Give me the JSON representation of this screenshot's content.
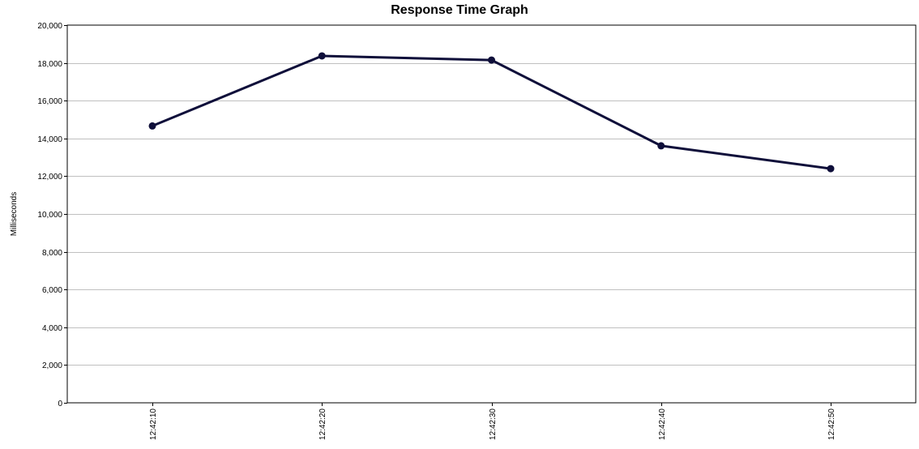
{
  "chart_data": {
    "type": "line",
    "title": "Response Time Graph",
    "xlabel": "",
    "ylabel": "Milliseconds",
    "x": [
      "12:42:10",
      "12:42:20",
      "12:42:30",
      "12:42:40",
      "12:42:50"
    ],
    "series": [
      {
        "values": [
          14660,
          18370,
          18150,
          13610,
          12400
        ],
        "color": "#0f0f3a"
      }
    ],
    "ylim": [
      0,
      20000
    ],
    "yticks": [
      0,
      2000,
      4000,
      6000,
      8000,
      10000,
      12000,
      14000,
      16000,
      18000,
      20000
    ],
    "ytick_labels": [
      "0",
      "2,000",
      "4,000",
      "6,000",
      "8,000",
      "10,000",
      "12,000",
      "14,000",
      "16,000",
      "18,000",
      "20,000"
    ],
    "grid": true,
    "grid_color": "#c0c0c0",
    "line_color": "#0f0f3a"
  }
}
